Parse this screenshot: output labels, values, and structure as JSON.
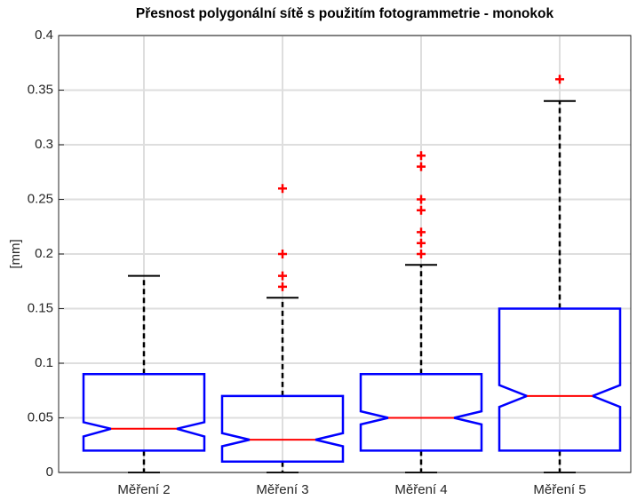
{
  "chart_data": {
    "type": "box",
    "title": "Přesnost polygonální sítě s použitím fotogrammetrie - monokok",
    "y_label": "[mm]",
    "categories": [
      "Měření 2",
      "Měření 3",
      "Měření 4",
      "Měření 5"
    ],
    "boxes": [
      {
        "whisker_low": 0,
        "q1": 0.02,
        "notch_low": 0.033,
        "median": 0.04,
        "notch_high": 0.046,
        "q3": 0.09,
        "whisker_high": 0.18,
        "outliers": []
      },
      {
        "whisker_low": 0,
        "q1": 0.01,
        "notch_low": 0.024,
        "median": 0.03,
        "notch_high": 0.036,
        "q3": 0.07,
        "whisker_high": 0.16,
        "outliers": [
          0.17,
          0.18,
          0.2,
          0.26
        ]
      },
      {
        "whisker_low": 0,
        "q1": 0.02,
        "notch_low": 0.044,
        "median": 0.05,
        "notch_high": 0.056,
        "q3": 0.09,
        "whisker_high": 0.19,
        "outliers": [
          0.2,
          0.21,
          0.22,
          0.24,
          0.25,
          0.28,
          0.29
        ]
      },
      {
        "whisker_low": 0,
        "q1": 0.02,
        "notch_low": 0.06,
        "median": 0.07,
        "notch_high": 0.08,
        "q3": 0.15,
        "whisker_high": 0.34,
        "outliers": [
          0.36
        ]
      }
    ],
    "box_color": "#0000ff",
    "median_color": "#ff0000",
    "outlier_color": "#ff0000",
    "whisker_color": "#000000",
    "ylim": [
      0,
      0.4
    ],
    "yticks": [
      0,
      0.05,
      0.1,
      0.15,
      0.2,
      0.25,
      0.3,
      0.35,
      0.4
    ],
    "grid": true
  }
}
